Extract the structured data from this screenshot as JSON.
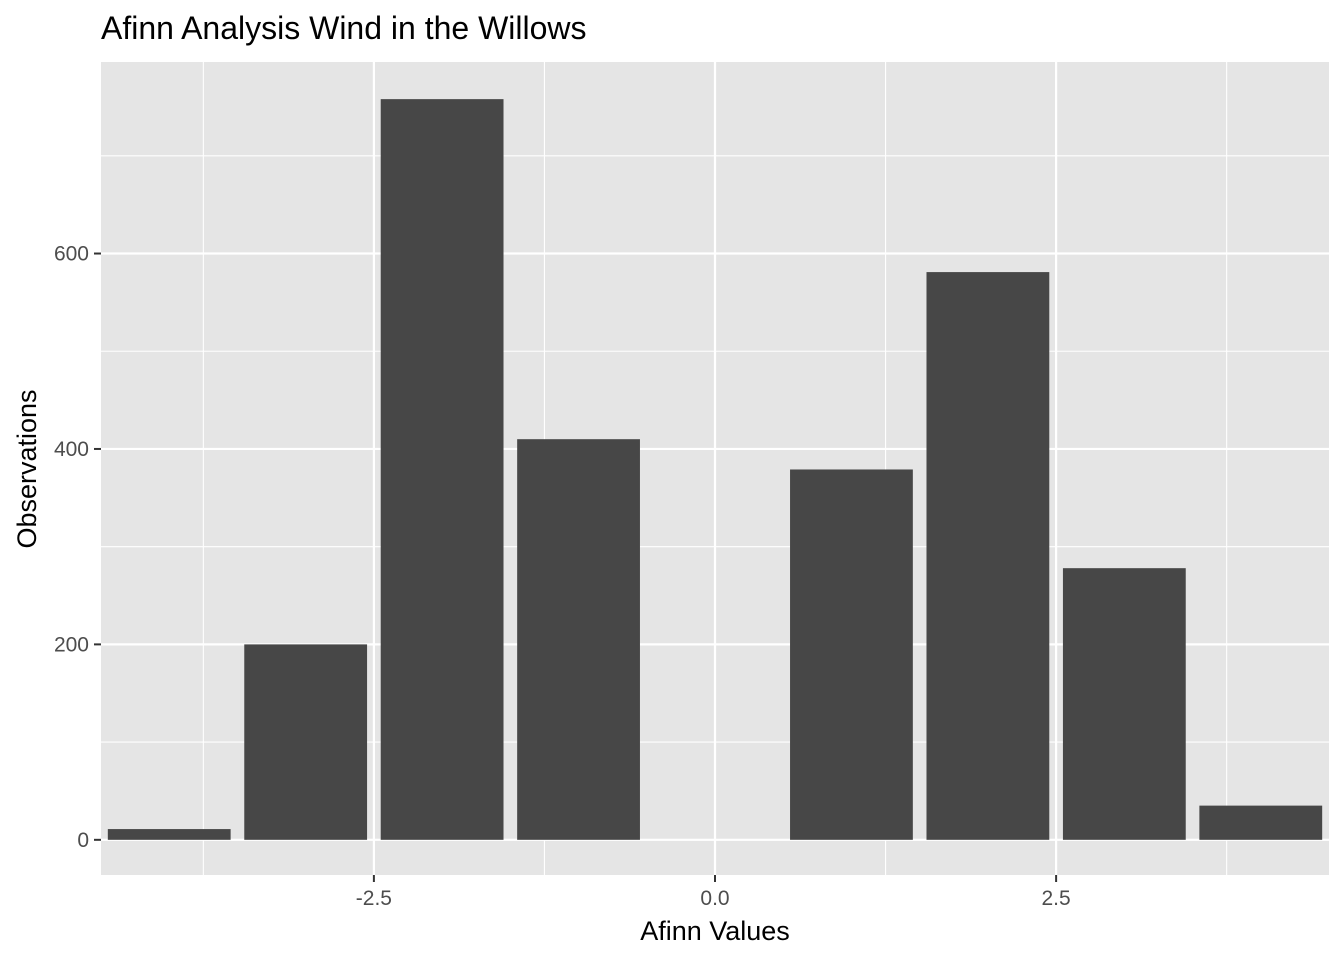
{
  "chart_data": {
    "type": "bar",
    "title": "Afinn Analysis Wind in the Willows",
    "xlabel": "Afinn Values",
    "ylabel": "Observations",
    "x": [
      -4,
      -3,
      -2,
      -1,
      1,
      2,
      3,
      4
    ],
    "values": [
      11,
      200,
      758,
      410,
      379,
      581,
      278,
      35
    ],
    "xlim": [
      -4.5,
      4.5
    ],
    "ylim": [
      -36,
      796
    ],
    "x_ticks": [
      -2.5,
      0.0,
      2.5
    ],
    "x_tick_labels": [
      "-2.5",
      "0.0",
      "2.5"
    ],
    "y_ticks": [
      0,
      200,
      400,
      600
    ],
    "y_tick_labels": [
      "0",
      "200",
      "400",
      "600"
    ],
    "bar_width": 0.9,
    "grid": true,
    "legend": "none",
    "colors": {
      "bar": "#474747",
      "panel": "#e5e5e5",
      "grid": "#ffffff",
      "tick": "#333333",
      "tick_label": "#4d4d4d"
    }
  }
}
